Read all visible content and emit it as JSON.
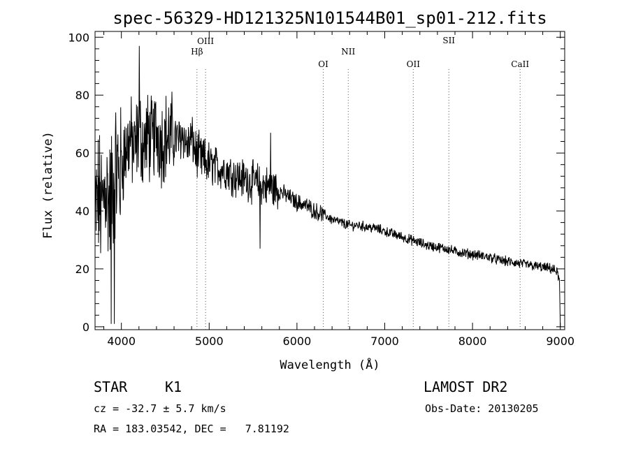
{
  "chart_data": {
    "type": "line",
    "title": "spec-56329-HD121325N101544B01_sp01-212.fits",
    "xlabel": "Wavelength (Å)",
    "ylabel": "Flux (relative)",
    "xlim": [
      3700,
      9050
    ],
    "ylim": [
      -1,
      102
    ],
    "xticks": [
      4000,
      5000,
      6000,
      7000,
      8000,
      9000
    ],
    "yticks": [
      0,
      20,
      40,
      60,
      80,
      100
    ],
    "grid": false,
    "series": [
      {
        "x": [
          3700,
          3740,
          3780,
          3820,
          3860,
          3900,
          3940,
          3980,
          4020,
          4060,
          4100,
          4150,
          4200,
          4250,
          4300,
          4350,
          4400,
          4450,
          4500,
          4550,
          4600,
          4650,
          4700,
          4750,
          4800,
          4850,
          4900,
          4950,
          5000,
          5100,
          5200,
          5300,
          5400,
          5500,
          5600,
          5700,
          5800,
          5900,
          6000,
          6100,
          6200,
          6300,
          6400,
          6500,
          6600,
          6700,
          6800,
          6900,
          7000,
          7100,
          7200,
          7300,
          7400,
          7500,
          7600,
          7700,
          7800,
          7900,
          8000,
          8100,
          8200,
          8300,
          8400,
          8500,
          8600,
          8700,
          8800,
          8900,
          8960,
          8990,
          9000
        ],
        "y": [
          38,
          45,
          40,
          50,
          42,
          48,
          55,
          52,
          58,
          62,
          65,
          60,
          68,
          62,
          66,
          64,
          68,
          64,
          66,
          65,
          66,
          64,
          67,
          62,
          65,
          60,
          58,
          57,
          56,
          55,
          54,
          52,
          51,
          50,
          49,
          48,
          47,
          45,
          43,
          42,
          40,
          39,
          37,
          36,
          35,
          35,
          34.5,
          34,
          33,
          32,
          31,
          30,
          29,
          28,
          27.5,
          27,
          26,
          25.5,
          25,
          24.5,
          24,
          23,
          22.5,
          22,
          21.5,
          21,
          20.5,
          20,
          19,
          16,
          0
        ],
        "color": "#000000"
      }
    ],
    "emission_lines": [
      {
        "label": "Hβ",
        "wavelength": 4861
      },
      {
        "label": "OIII",
        "wavelength": 4959
      },
      {
        "label": "OI",
        "wavelength": 6300
      },
      {
        "label": "NII",
        "wavelength": 6584
      },
      {
        "label": "OII",
        "wavelength": 7325
      },
      {
        "label": "SII",
        "wavelength": 7730
      },
      {
        "label": "CaII",
        "wavelength": 8542
      }
    ],
    "line_marker_color": "#d02020"
  },
  "info": {
    "class_label": "STAR",
    "subclass_label": "K1",
    "survey": "LAMOST DR2",
    "cz": "cz = -32.7 ± 5.7 km/s",
    "obs_date": "Obs-Date: 20130205",
    "radec": "RA = 183.03542, DEC =   7.81192"
  }
}
